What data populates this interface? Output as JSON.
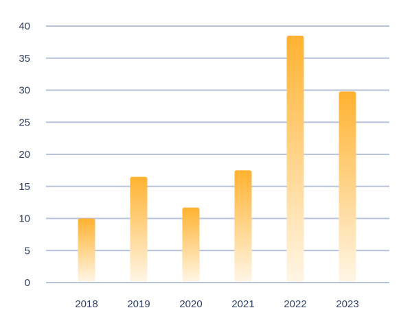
{
  "chart_data": {
    "type": "bar",
    "title": "",
    "xlabel": "",
    "ylabel": "",
    "categories": [
      "2018",
      "2019",
      "2020",
      "2021",
      "2022",
      "2023"
    ],
    "values": [
      10,
      16.5,
      11.7,
      17.5,
      38.5,
      29.8
    ],
    "ylim": [
      0,
      40
    ],
    "yticks": [
      0,
      5,
      10,
      15,
      20,
      25,
      30,
      35,
      40
    ],
    "grid": true,
    "legend": "none",
    "colors": {
      "bar_top": "#ffb230",
      "bar_bottom": "#fff6e6",
      "grid": "#b7c3d9",
      "tick_label": "#2f3f63"
    }
  }
}
